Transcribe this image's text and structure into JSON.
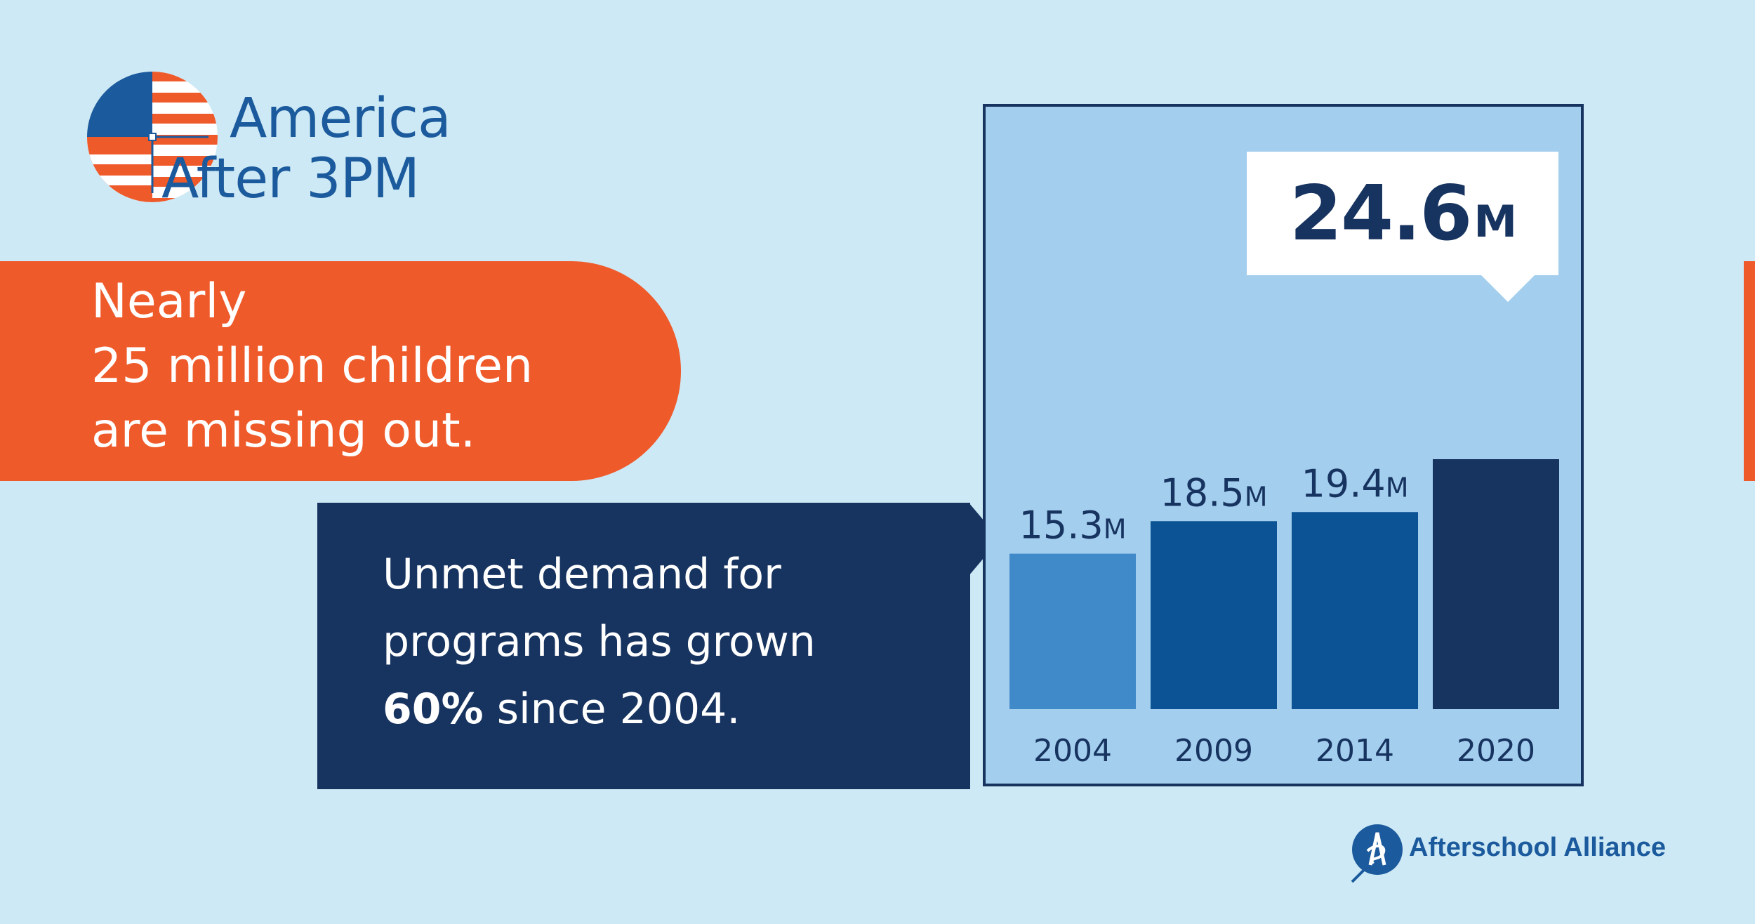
{
  "logo": {
    "line1": "America",
    "line2": "After 3PM"
  },
  "headline": {
    "lines": [
      "Nearly",
      "25 million children",
      "are missing out."
    ]
  },
  "demand": {
    "line1": "Unmet demand for",
    "line2": "programs has grown",
    "line3_bold": "60%",
    "line3_rest": " since 2004."
  },
  "callout": {
    "value": "24.6",
    "unit": "M"
  },
  "footer": {
    "org": "Afterschool Alliance"
  },
  "colors": {
    "background": "#cde9f5",
    "orange": "#ef5a2b",
    "navy": "#17335f",
    "chart_bg": "#a3ceed",
    "bar_2004": "#418ac9",
    "bar_mid": "#0b5394",
    "bar_2020": "#17335f",
    "brand_blue": "#1b5a9c"
  },
  "chart_data": {
    "type": "bar",
    "categories": [
      "2004",
      "2009",
      "2014",
      "2020"
    ],
    "values": [
      15.3,
      18.5,
      19.4,
      24.6
    ],
    "value_labels": [
      "15.3",
      "18.5",
      "19.4",
      ""
    ],
    "label_unit": "M",
    "title": "",
    "xlabel": "",
    "ylabel": "",
    "ylim": [
      0,
      24.6
    ],
    "grid": false
  }
}
